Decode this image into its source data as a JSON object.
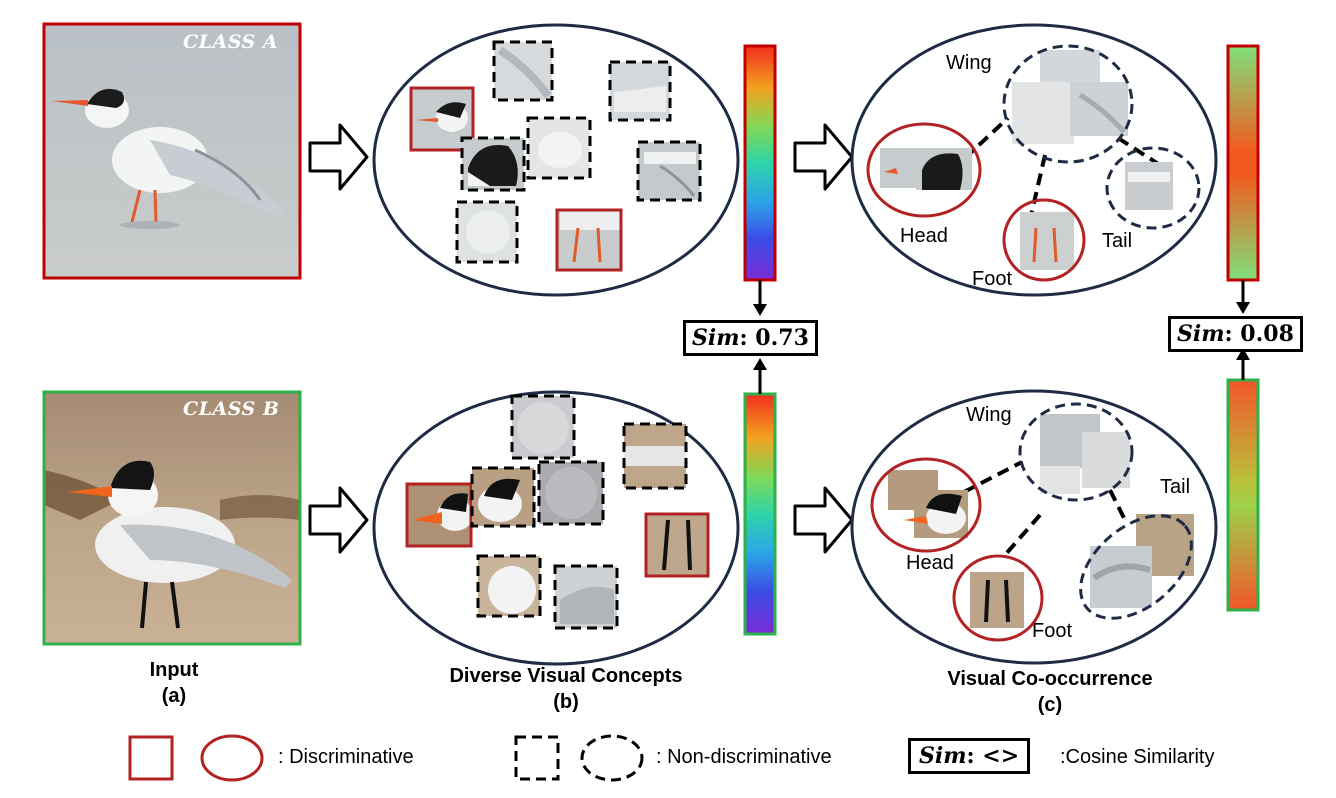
{
  "panels": {
    "a": {
      "title": "Input",
      "letter": "(a)"
    },
    "b": {
      "title": "Diverse Visual Concepts",
      "letter": "(b)"
    },
    "c": {
      "title": "Visual Co-occurrence",
      "letter": "(c)"
    }
  },
  "inputs": {
    "class_a": {
      "label": "CLASS A",
      "frame_color": "#c00000"
    },
    "class_b": {
      "label": "CLASS B",
      "frame_color": "#2eb04a"
    }
  },
  "similarity": {
    "b": {
      "prefix": "Sim",
      "value": ": 0.73"
    },
    "c": {
      "prefix": "Sim",
      "value": ": 0.08"
    }
  },
  "parts_top": {
    "wing": "Wing",
    "head": "Head",
    "foot": "Foot",
    "tail": "Tail"
  },
  "parts_bottom": {
    "wing": "Wing",
    "head": "Head",
    "foot": "Foot",
    "tail": "Tail"
  },
  "legend": {
    "discriminative": ": Discriminative",
    "non_discriminative": ": Non-discriminative",
    "sim_prefix": "Sim",
    "sim_suffix": ": <>",
    "cosine": ":Cosine Similarity"
  },
  "colors": {
    "discriminative": "#b22222",
    "non_discriminative": "#000000",
    "ellipse": "#1f2a44",
    "class_a_frame": "#c00000",
    "class_b_frame": "#2eb04a"
  }
}
